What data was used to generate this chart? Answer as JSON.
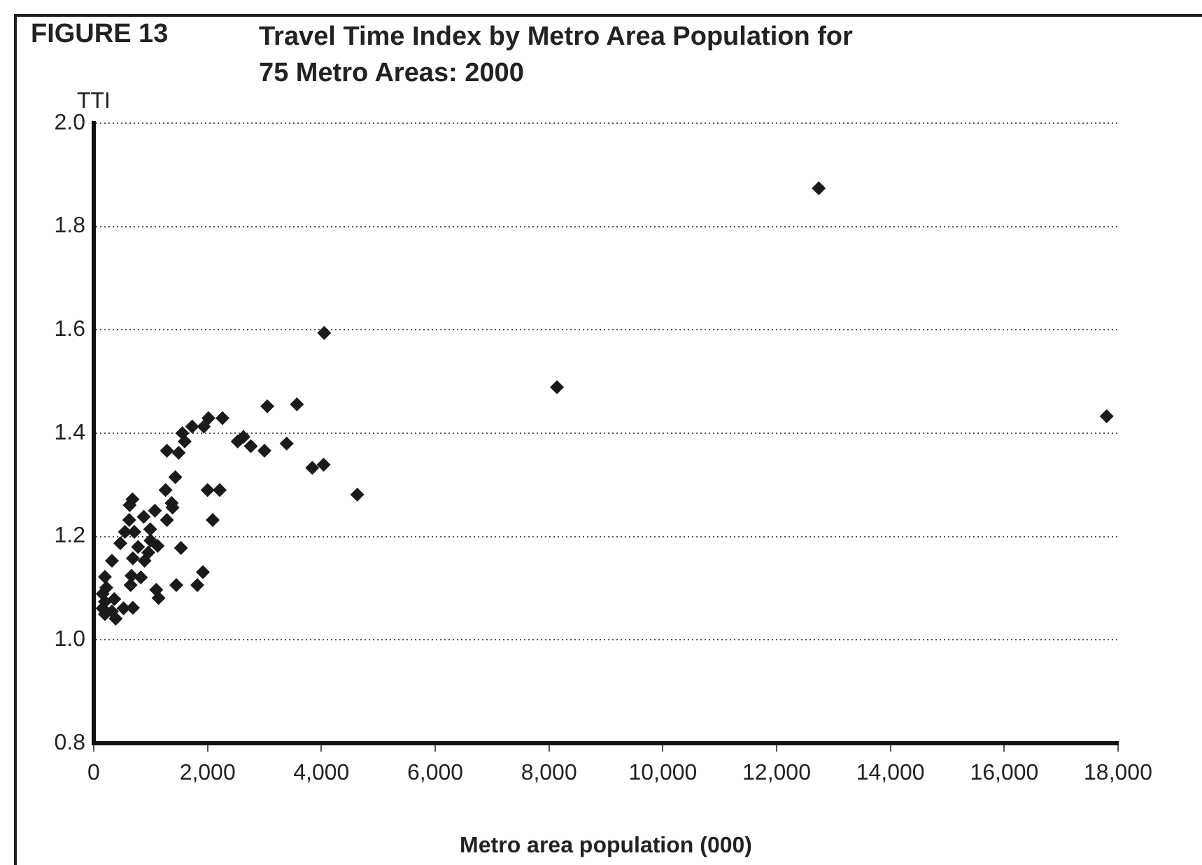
{
  "chart_data": {
    "type": "scatter",
    "title": "Travel Time Index by Metro Area Population for 75 Metro Areas: 2000",
    "annotations": [
      "FIGURE 13"
    ],
    "xlabel": "Metro area population (000)",
    "ylabel": "TTI",
    "marker": "diamond",
    "grid": "y",
    "legend": false,
    "xlim": [
      0,
      18000
    ],
    "xticks": [
      {
        "value": 0,
        "label": "0"
      },
      {
        "value": 2000,
        "label": "2,000"
      },
      {
        "value": 4000,
        "label": "4,000"
      },
      {
        "value": 6000,
        "label": "6,000"
      },
      {
        "value": 8000,
        "label": "8,000"
      },
      {
        "value": 10000,
        "label": "10,000"
      },
      {
        "value": 12000,
        "label": "12,000"
      },
      {
        "value": 14000,
        "label": "14,000"
      },
      {
        "value": 16000,
        "label": "16,000"
      },
      {
        "value": 18000,
        "label": "18,000"
      }
    ],
    "ylim": [
      0.8,
      2.0
    ],
    "yticks": [
      0.8,
      {
        "value": 1,
        "label": "1.0"
      },
      1.2,
      1.4,
      1.6,
      1.8,
      {
        "value": 2,
        "label": "2.0"
      }
    ],
    "series": [
      {
        "color": "#1a1a1a",
        "x": [
          12740,
          17800,
          8140,
          4050,
          3050,
          3570,
          2630,
          2530,
          2760,
          3000,
          3390,
          3840,
          4040,
          4630,
          2016,
          2262,
          1934,
          1729,
          1557,
          1598,
          1286,
          1492,
          1434,
          1262,
          2000,
          2213,
          681,
          631,
          1369,
          1385,
          1074,
          878,
          623,
          1286,
          2090,
          992,
          549,
          713,
          1000,
          1123,
          467,
          779,
          1533,
          959,
          688,
          893,
          320,
          1918,
          664,
          828,
          197,
          1820,
          1451,
          647,
          221,
          1098,
          155,
          1139,
          361,
          197,
          155,
          524,
          688,
          320,
          197,
          386
        ],
        "values": [
          1.874,
          1.433,
          1.489,
          1.594,
          1.452,
          1.456,
          1.393,
          1.384,
          1.375,
          1.366,
          1.38,
          1.333,
          1.339,
          1.281,
          1.429,
          1.429,
          1.413,
          1.413,
          1.4,
          1.384,
          1.366,
          1.362,
          1.315,
          1.29,
          1.29,
          1.29,
          1.272,
          1.261,
          1.265,
          1.256,
          1.25,
          1.238,
          1.232,
          1.232,
          1.232,
          1.214,
          1.209,
          1.209,
          1.192,
          1.182,
          1.187,
          1.18,
          1.178,
          1.169,
          1.158,
          1.153,
          1.153,
          1.131,
          1.124,
          1.121,
          1.122,
          1.106,
          1.106,
          1.106,
          1.101,
          1.097,
          1.089,
          1.081,
          1.079,
          1.074,
          1.061,
          1.061,
          1.062,
          1.055,
          1.05,
          1.041
        ]
      }
    ]
  }
}
